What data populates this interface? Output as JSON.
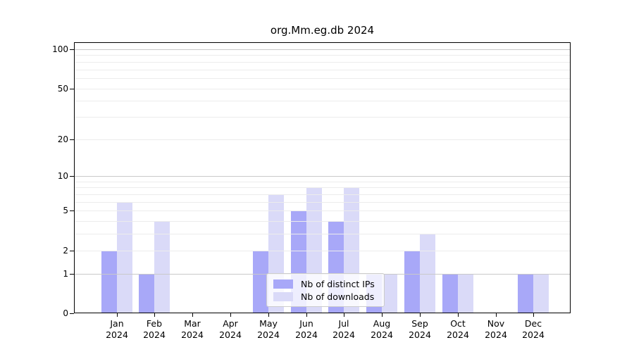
{
  "chart_data": {
    "type": "bar",
    "title": "org.Mm.eg.db 2024",
    "year_label": "2024",
    "categories": [
      "Jan",
      "Feb",
      "Mar",
      "Apr",
      "May",
      "Jun",
      "Jul",
      "Aug",
      "Sep",
      "Oct",
      "Nov",
      "Dec"
    ],
    "series": [
      {
        "name": "Nb of distinct IPs",
        "color": "#a8a8f8",
        "values": [
          2,
          1,
          0,
          0,
          2,
          5,
          4,
          1,
          2,
          1,
          0,
          1
        ]
      },
      {
        "name": "Nb of downloads",
        "color": "#dadaf8",
        "values": [
          6,
          4,
          0,
          0,
          7,
          8,
          8,
          1,
          3,
          1,
          0,
          1
        ]
      }
    ],
    "yticks": [
      0,
      1,
      2,
      5,
      10,
      20,
      50,
      100
    ],
    "y_scale": "log1p",
    "ylim": [
      0,
      112
    ],
    "xlabel": "",
    "ylabel": "",
    "grid": "horizontal",
    "legend_position": "bottom-center",
    "colors": {
      "grid_major": "#c9c9c9",
      "grid_minor": "#ececec",
      "axis": "#000000",
      "legend_border": "#cccccc"
    }
  }
}
